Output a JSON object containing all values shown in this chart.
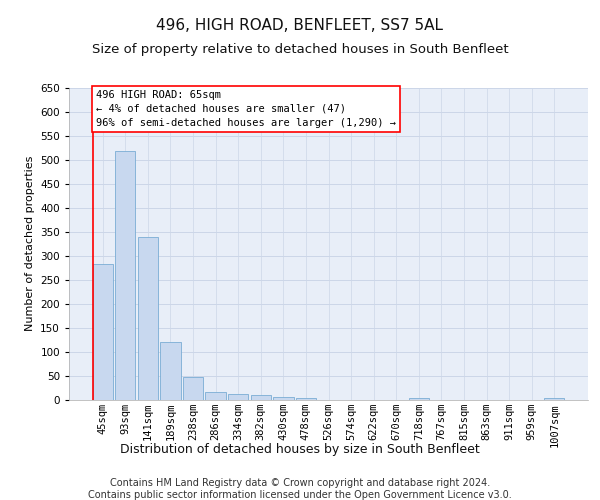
{
  "title": "496, HIGH ROAD, BENFLEET, SS7 5AL",
  "subtitle": "Size of property relative to detached houses in South Benfleet",
  "xlabel": "Distribution of detached houses by size in South Benfleet",
  "ylabel": "Number of detached properties",
  "categories": [
    "45sqm",
    "93sqm",
    "141sqm",
    "189sqm",
    "238sqm",
    "286sqm",
    "334sqm",
    "382sqm",
    "430sqm",
    "478sqm",
    "526sqm",
    "574sqm",
    "622sqm",
    "670sqm",
    "718sqm",
    "767sqm",
    "815sqm",
    "863sqm",
    "911sqm",
    "959sqm",
    "1007sqm"
  ],
  "values": [
    283,
    517,
    340,
    120,
    47,
    17,
    12,
    10,
    7,
    5,
    0,
    0,
    0,
    0,
    5,
    0,
    0,
    0,
    0,
    0,
    5
  ],
  "bar_color": "#c8d8ef",
  "bar_edge_color": "#7aadd4",
  "annotation_line1": "496 HIGH ROAD: 65sqm",
  "annotation_line2": "← 4% of detached houses are smaller (47)",
  "annotation_line3": "96% of semi-detached houses are larger (1,290) →",
  "annotation_box_color": "white",
  "annotation_box_edge_color": "red",
  "marker_line_color": "red",
  "ylim": [
    0,
    650
  ],
  "yticks": [
    0,
    50,
    100,
    150,
    200,
    250,
    300,
    350,
    400,
    450,
    500,
    550,
    600,
    650
  ],
  "grid_color": "#ccd6e8",
  "background_color": "#e8eef8",
  "footer_line1": "Contains HM Land Registry data © Crown copyright and database right 2024.",
  "footer_line2": "Contains public sector information licensed under the Open Government Licence v3.0.",
  "title_fontsize": 11,
  "subtitle_fontsize": 9.5,
  "ylabel_fontsize": 8,
  "xlabel_fontsize": 9,
  "tick_fontsize": 7.5,
  "ann_fontsize": 7.5,
  "footer_fontsize": 7
}
